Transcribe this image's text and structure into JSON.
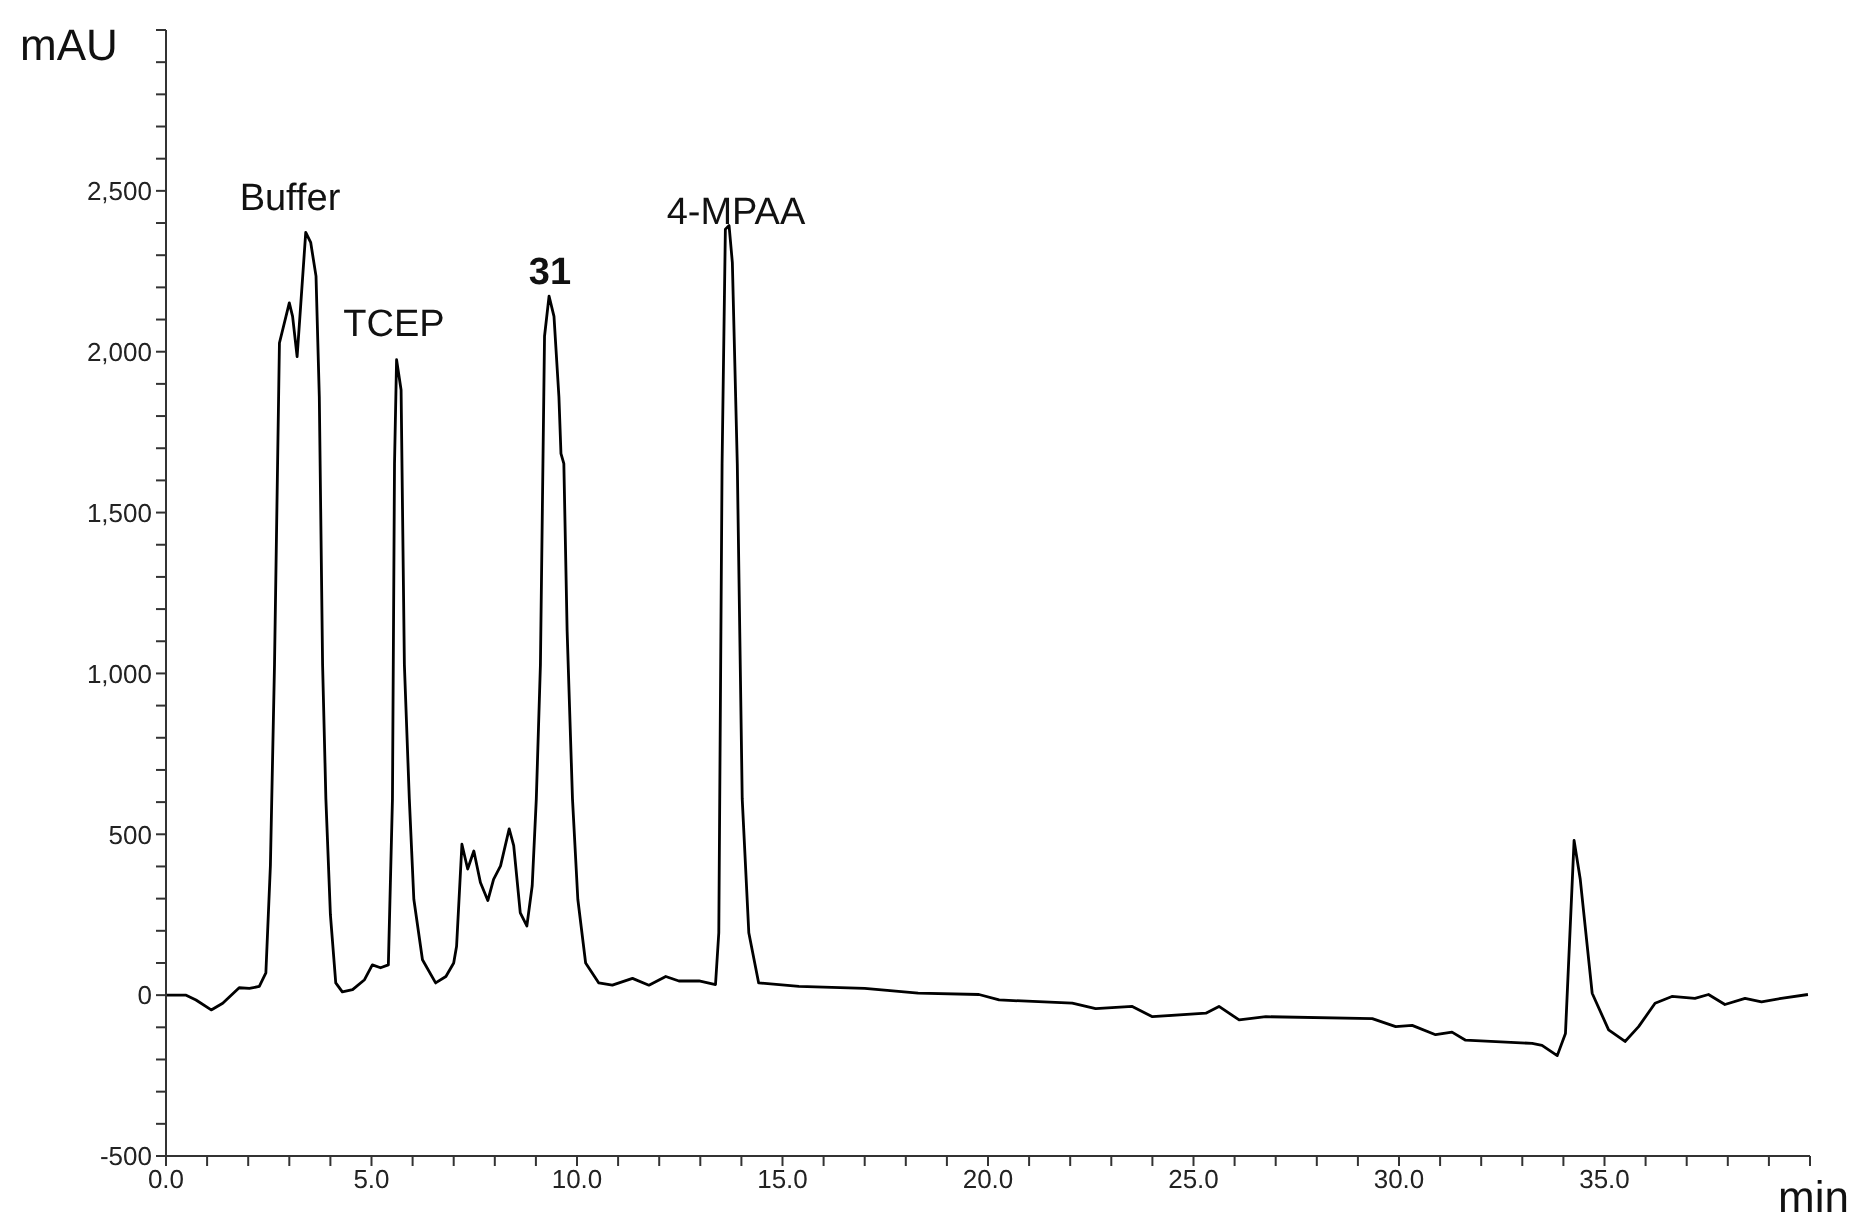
{
  "chart_data": {
    "type": "line",
    "xlabel": "min",
    "ylabel": "mAU",
    "xlim": [
      0,
      40
    ],
    "ylim": [
      -500,
      3000
    ],
    "xticks": [
      {
        "value": 0,
        "label": "0.0"
      },
      {
        "value": 1,
        "label": null
      },
      {
        "value": 2,
        "label": null
      },
      {
        "value": 3,
        "label": null
      },
      {
        "value": 4,
        "label": null
      },
      {
        "value": 5,
        "label": "5.0"
      },
      {
        "value": 6,
        "label": null
      },
      {
        "value": 7,
        "label": null
      },
      {
        "value": 8,
        "label": null
      },
      {
        "value": 9,
        "label": null
      },
      {
        "value": 10,
        "label": "10.0"
      },
      {
        "value": 11,
        "label": null
      },
      {
        "value": 12,
        "label": null
      },
      {
        "value": 13,
        "label": null
      },
      {
        "value": 14,
        "label": null
      },
      {
        "value": 15,
        "label": "15.0"
      },
      {
        "value": 16,
        "label": null
      },
      {
        "value": 17,
        "label": null
      },
      {
        "value": 18,
        "label": null
      },
      {
        "value": 19,
        "label": null
      },
      {
        "value": 20,
        "label": "20.0"
      },
      {
        "value": 21,
        "label": null
      },
      {
        "value": 22,
        "label": null
      },
      {
        "value": 23,
        "label": null
      },
      {
        "value": 24,
        "label": null
      },
      {
        "value": 25,
        "label": "25.0"
      },
      {
        "value": 26,
        "label": null
      },
      {
        "value": 27,
        "label": null
      },
      {
        "value": 28,
        "label": null
      },
      {
        "value": 29,
        "label": null
      },
      {
        "value": 30,
        "label": "30.0"
      },
      {
        "value": 31,
        "label": null
      },
      {
        "value": 32,
        "label": null
      },
      {
        "value": 33,
        "label": null
      },
      {
        "value": 34,
        "label": null
      },
      {
        "value": 35,
        "label": "35.0"
      },
      {
        "value": 36,
        "label": null
      },
      {
        "value": 37,
        "label": null
      },
      {
        "value": 38,
        "label": null
      },
      {
        "value": 39,
        "label": null
      },
      {
        "value": 40,
        "label": null
      }
    ],
    "yticks": [
      {
        "value": -500,
        "label": "-500"
      },
      {
        "value": -400,
        "label": null
      },
      {
        "value": -300,
        "label": null
      },
      {
        "value": -200,
        "label": null
      },
      {
        "value": -100,
        "label": null
      },
      0,
      {
        "value": 100,
        "label": null
      },
      {
        "value": 200,
        "label": null
      },
      {
        "value": 300,
        "label": null
      },
      {
        "value": 400,
        "label": null
      },
      500,
      {
        "value": 600,
        "label": null
      },
      {
        "value": 700,
        "label": null
      },
      {
        "value": 800,
        "label": null
      },
      {
        "value": 900,
        "label": null
      },
      {
        "value": 1000,
        "label": "1,000"
      },
      {
        "value": 1100,
        "label": null
      },
      {
        "value": 1200,
        "label": null
      },
      {
        "value": 1300,
        "label": null
      },
      {
        "value": 1400,
        "label": null
      },
      {
        "value": 1500,
        "label": "1,500"
      },
      {
        "value": 1600,
        "label": null
      },
      {
        "value": 1700,
        "label": null
      },
      {
        "value": 1800,
        "label": null
      },
      {
        "value": 1900,
        "label": null
      },
      {
        "value": 2000,
        "label": "2,000"
      },
      {
        "value": 2100,
        "label": null
      },
      {
        "value": 2200,
        "label": null
      },
      {
        "value": 2300,
        "label": null
      },
      {
        "value": 2400,
        "label": null
      },
      {
        "value": 2500,
        "label": "2,500"
      },
      {
        "value": 2600,
        "label": null
      },
      {
        "value": 2700,
        "label": null
      },
      {
        "value": 2800,
        "label": null
      },
      {
        "value": 2900,
        "label": null
      },
      {
        "value": 3000,
        "label": null
      }
    ],
    "annotations": [
      "Buffer",
      "TCEP",
      "31",
      "4-MPAA"
    ],
    "series": [
      {
        "color": "#000000",
        "x": [
          0,
          0.49,
          0.73,
          1.1,
          1.38,
          1.78,
          2.03,
          2.27,
          2.43,
          2.54,
          2.64,
          2.76,
          3.0,
          3.08,
          3.19,
          3.27,
          3.4,
          3.52,
          3.65,
          3.73,
          3.81,
          3.89,
          4.0,
          4.13,
          4.29,
          4.54,
          4.83,
          5.02,
          5.22,
          5.41,
          5.51,
          5.56,
          5.61,
          5.72,
          5.8,
          5.92,
          6.03,
          6.24,
          6.56,
          6.81,
          7.0,
          7.07,
          7.2,
          7.34,
          7.49,
          7.65,
          7.83,
          7.97,
          8.14,
          8.35,
          8.46,
          8.62,
          8.78,
          8.91,
          9.01,
          9.11,
          9.21,
          9.32,
          9.44,
          9.56,
          9.61,
          9.68,
          9.76,
          9.89,
          10.02,
          10.21,
          10.53,
          10.86,
          11.35,
          11.75,
          12.16,
          12.48,
          12.97,
          13.37,
          13.45,
          13.53,
          13.61,
          13.7,
          13.78,
          13.9,
          14.02,
          14.18,
          14.42,
          15.4,
          17.0,
          18.3,
          19.78,
          20.27,
          22.05,
          22.62,
          23.51,
          24.0,
          25.3,
          25.62,
          26.11,
          26.76,
          29.35,
          29.92,
          30.32,
          30.89,
          31.29,
          31.62,
          33.24,
          33.48,
          33.85,
          34.05,
          34.26,
          34.41,
          34.7,
          35.1,
          35.5,
          35.83,
          36.23,
          36.64,
          37.2,
          37.53,
          37.93,
          38.42,
          38.82,
          39.3,
          39.95
        ],
        "values": [
          0,
          0,
          -15,
          -46,
          -25,
          23,
          21,
          27,
          69,
          402,
          1027,
          2027,
          2152,
          2110,
          1985,
          2131,
          2371,
          2340,
          2235,
          1860,
          1027,
          610,
          250,
          38,
          10,
          17,
          48,
          94,
          85,
          94,
          610,
          1652,
          1975,
          1881,
          1027,
          610,
          298,
          110,
          38,
          58,
          100,
          152,
          469,
          392,
          448,
          350,
          294,
          360,
          402,
          517,
          465,
          256,
          215,
          340,
          610,
          1027,
          2048,
          2173,
          2110,
          1860,
          1683,
          1652,
          1131,
          610,
          298,
          100,
          38,
          31,
          52,
          31,
          58,
          44,
          44,
          33,
          194,
          1652,
          2381,
          2392,
          2277,
          1652,
          610,
          194,
          38,
          27,
          21,
          6,
          2,
          -15,
          -25,
          -42,
          -35,
          -67,
          -56,
          -35,
          -77,
          -67,
          -73,
          -98,
          -94,
          -123,
          -115,
          -140,
          -150,
          -156,
          -188,
          -119,
          481,
          360,
          6,
          -108,
          -144,
          -98,
          -25,
          -4,
          -10,
          2,
          -29,
          -10,
          -21,
          -10,
          2
        ]
      }
    ]
  }
}
